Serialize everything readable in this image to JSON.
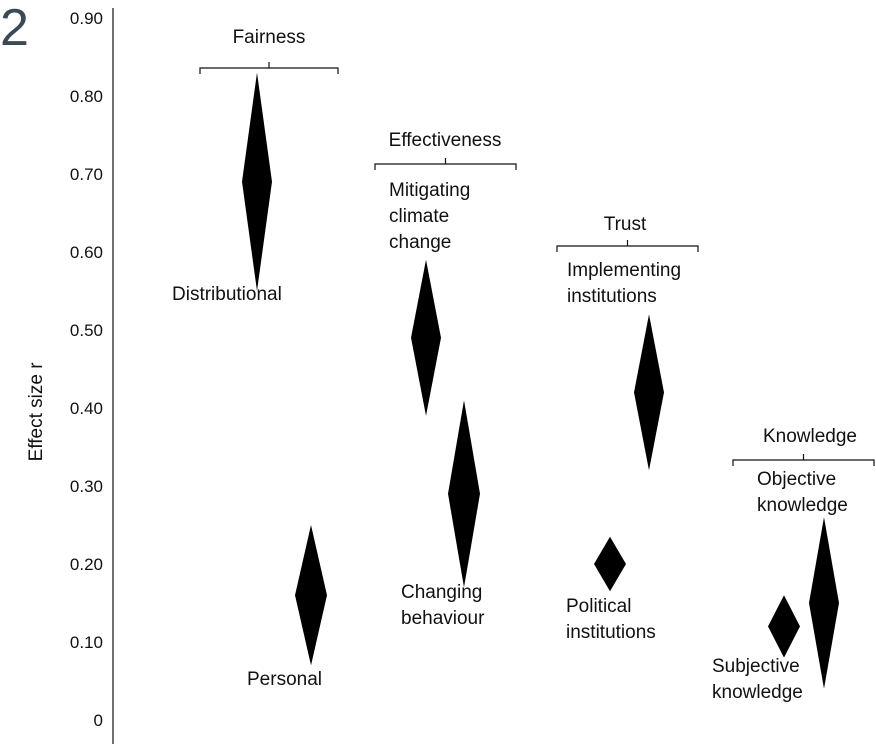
{
  "figure_corner_text": "2",
  "chart_data": {
    "type": "scatter",
    "marker": "diamond",
    "ylabel": "Effect size r",
    "ylim": [
      0,
      0.9
    ],
    "y_ticks": [
      "0",
      "0.10",
      "0.20",
      "0.30",
      "0.40",
      "0.50",
      "0.60",
      "0.70",
      "0.80",
      "0.90"
    ],
    "grid": false,
    "legend": "none",
    "marker_color": "#000000",
    "groups": [
      {
        "title": "Fairness",
        "items": [
          {
            "label": "Distributional",
            "estimate": 0.69,
            "ci_low": 0.55,
            "ci_high": 0.83
          },
          {
            "label": "Personal",
            "estimate": 0.16,
            "ci_low": 0.07,
            "ci_high": 0.25
          }
        ]
      },
      {
        "title": "Effectiveness",
        "items": [
          {
            "label": "Mitigating climate change",
            "estimate": 0.49,
            "ci_low": 0.39,
            "ci_high": 0.59
          },
          {
            "label": "Changing behaviour",
            "estimate": 0.29,
            "ci_low": 0.17,
            "ci_high": 0.41
          }
        ]
      },
      {
        "title": "Trust",
        "items": [
          {
            "label": "Implementing institutions",
            "estimate": 0.42,
            "ci_low": 0.32,
            "ci_high": 0.52
          },
          {
            "label": "Political institutions",
            "estimate": 0.2,
            "ci_low": 0.165,
            "ci_high": 0.235
          }
        ]
      },
      {
        "title": "Knowledge",
        "items": [
          {
            "label": "Objective knowledge",
            "estimate": 0.15,
            "ci_low": 0.04,
            "ci_high": 0.26
          },
          {
            "label": "Subjective knowledge",
            "estimate": 0.12,
            "ci_low": 0.08,
            "ci_high": 0.16
          }
        ]
      }
    ]
  }
}
